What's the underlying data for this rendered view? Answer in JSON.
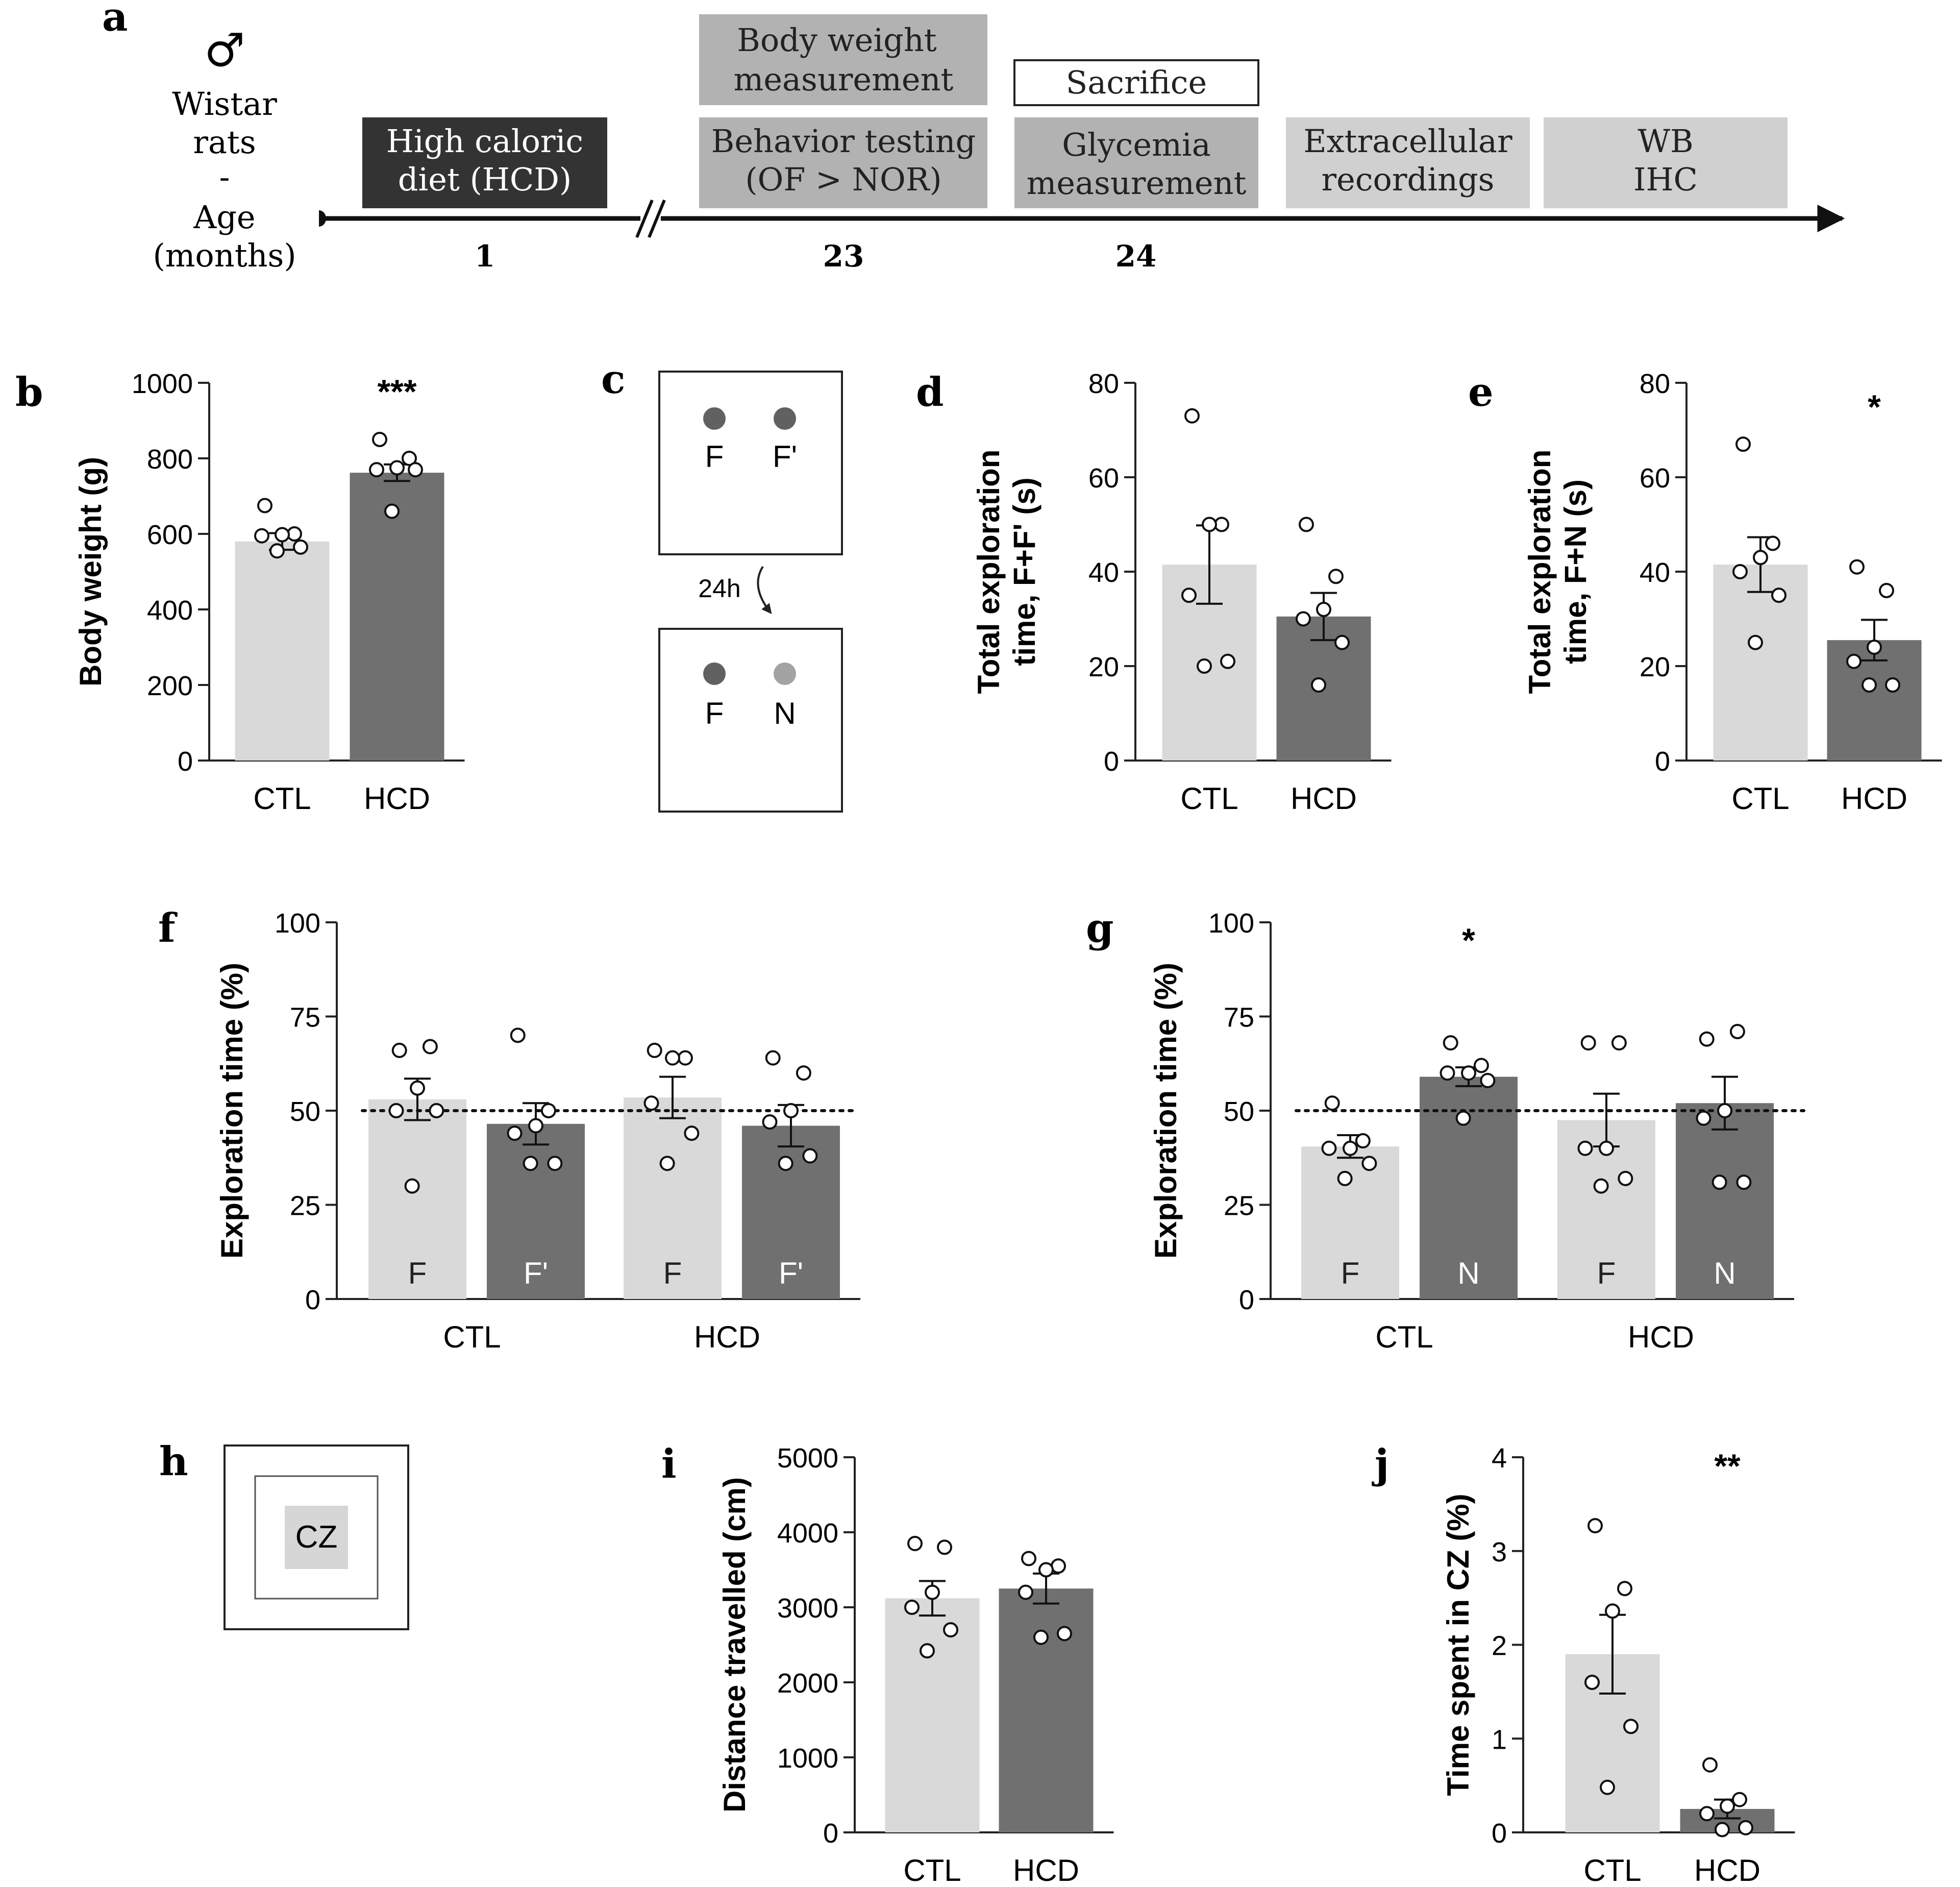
{
  "colors": {
    "ctl": "#d9d9d9",
    "hcd": "#707070",
    "dark_box": "#333333",
    "grey_box": "#b2b2b2",
    "light_box": "#d0d0d0",
    "dot_dark": "#616161",
    "dot_light": "#a3a3a3",
    "cz_fill": "#d6d6d6"
  },
  "panel_a": {
    "letter": "a",
    "male_symbol": "♂",
    "subject_lines": [
      "Wistar",
      "rats",
      "-",
      "Age",
      "(months)"
    ],
    "boxes": [
      {
        "lines": [
          "High caloric",
          "diet (HCD)"
        ]
      },
      {
        "lines": [
          "Body weight",
          "measurement"
        ]
      },
      {
        "lines": [
          "Behavior testing",
          "(OF > NOR)"
        ]
      },
      {
        "lines": [
          "Sacrifice"
        ]
      },
      {
        "lines": [
          "Glycemia",
          "measurement"
        ]
      },
      {
        "lines": [
          "Extracellular",
          "recordings"
        ]
      },
      {
        "lines": [
          "WB",
          "IHC"
        ]
      }
    ],
    "timeline_ticks": [
      "1",
      "23",
      "24"
    ]
  },
  "panel_c": {
    "letter": "c",
    "objects_top": [
      "F",
      "F'"
    ],
    "interval": "24h",
    "objects_bottom": [
      "F",
      "N"
    ]
  },
  "panel_h": {
    "letter": "h",
    "zone_label": "CZ"
  },
  "chart_data": [
    {
      "id": "b",
      "type": "bar",
      "letter": "b",
      "ylabel": [
        "Body weight (g)"
      ],
      "ylim": [
        0,
        1000
      ],
      "yticks": [
        0,
        200,
        400,
        600,
        800,
        1000
      ],
      "categories": [
        "CTL",
        "HCD"
      ],
      "values": [
        580,
        762
      ],
      "sem": [
        22,
        22
      ],
      "points": [
        [
          675,
          600,
          598,
          595,
          565,
          555
        ],
        [
          850,
          800,
          775,
          770,
          770,
          660
        ]
      ],
      "significance": "***"
    },
    {
      "id": "d",
      "type": "bar",
      "letter": "d",
      "ylabel": [
        "Total exploration",
        "time, F+F' (s)"
      ],
      "ylim": [
        0,
        80
      ],
      "yticks": [
        0,
        20,
        40,
        60,
        80
      ],
      "categories": [
        "CTL",
        "HCD"
      ],
      "values": [
        41.5,
        30.5
      ],
      "sem": [
        8.3,
        5.0
      ],
      "points": [
        [
          73,
          50,
          50,
          35,
          21,
          20
        ],
        [
          50,
          39,
          32,
          30,
          25,
          16
        ]
      ],
      "significance": ""
    },
    {
      "id": "e",
      "type": "bar",
      "letter": "e",
      "ylabel": [
        "Total exploration",
        "time, F+N (s)"
      ],
      "ylim": [
        0,
        80
      ],
      "yticks": [
        0,
        20,
        40,
        60,
        80
      ],
      "categories": [
        "CTL",
        "HCD"
      ],
      "values": [
        41.5,
        25.5
      ],
      "sem": [
        5.8,
        4.3
      ],
      "points": [
        [
          67,
          46,
          43,
          40,
          35,
          25
        ],
        [
          41,
          36,
          24,
          21,
          16,
          16
        ]
      ],
      "significance": "*"
    },
    {
      "id": "f",
      "type": "bar",
      "letter": "f",
      "ylabel": [
        "Exploration time (%)"
      ],
      "ylim": [
        0,
        100
      ],
      "yticks": [
        0,
        25,
        50,
        75,
        100
      ],
      "groups": [
        "CTL",
        "HCD"
      ],
      "bar_labels": [
        "F",
        "F'",
        "F",
        "F'"
      ],
      "values": [
        53,
        46.5,
        53.5,
        46
      ],
      "sem": [
        5.5,
        5.5,
        5.5,
        5.5
      ],
      "points": [
        [
          66,
          67,
          56,
          50,
          50,
          30
        ],
        [
          70,
          50,
          46,
          44,
          36,
          36
        ],
        [
          66,
          64,
          64,
          52,
          44,
          36
        ],
        [
          64,
          60,
          50,
          47,
          38,
          36
        ]
      ],
      "reference_line": 50,
      "significance": [
        "",
        "",
        "",
        ""
      ]
    },
    {
      "id": "g",
      "type": "bar",
      "letter": "g",
      "ylabel": [
        "Exploration time (%)"
      ],
      "ylim": [
        0,
        100
      ],
      "yticks": [
        0,
        25,
        50,
        75,
        100
      ],
      "groups": [
        "CTL",
        "HCD"
      ],
      "bar_labels": [
        "F",
        "N",
        "F",
        "N"
      ],
      "values": [
        40.5,
        59,
        47.5,
        52
      ],
      "sem": [
        3,
        2.5,
        7,
        7
      ],
      "points": [
        [
          52,
          42,
          40,
          40,
          36,
          32
        ],
        [
          68,
          62,
          60,
          60,
          58,
          48
        ],
        [
          68,
          68,
          40,
          40,
          32,
          30
        ],
        [
          69,
          71,
          50,
          48,
          31,
          31
        ]
      ],
      "reference_line": 50,
      "significance": [
        "",
        "*",
        "",
        ""
      ]
    },
    {
      "id": "i",
      "type": "bar",
      "letter": "i",
      "ylabel": [
        "Distance travelled (cm)"
      ],
      "ylim": [
        0,
        5000
      ],
      "yticks": [
        0,
        1000,
        2000,
        3000,
        4000,
        5000
      ],
      "categories": [
        "CTL",
        "HCD"
      ],
      "values": [
        3120,
        3250
      ],
      "sem": [
        230,
        200
      ],
      "points": [
        [
          3850,
          3800,
          3200,
          3000,
          2700,
          2420
        ],
        [
          3650,
          3550,
          3500,
          3200,
          2650,
          2600
        ]
      ],
      "significance": ""
    },
    {
      "id": "j",
      "type": "bar",
      "letter": "j",
      "ylabel": [
        "Time spent in CZ (%)"
      ],
      "ylim": [
        0,
        4
      ],
      "yticks": [
        0,
        1,
        2,
        3,
        4
      ],
      "categories": [
        "CTL",
        "HCD"
      ],
      "values": [
        1.9,
        0.25
      ],
      "sem": [
        0.42,
        0.1
      ],
      "points": [
        [
          3.27,
          2.6,
          2.36,
          1.6,
          1.13,
          0.48
        ],
        [
          0.72,
          0.35,
          0.28,
          0.2,
          0.05,
          0.03
        ]
      ],
      "significance": "**"
    }
  ]
}
